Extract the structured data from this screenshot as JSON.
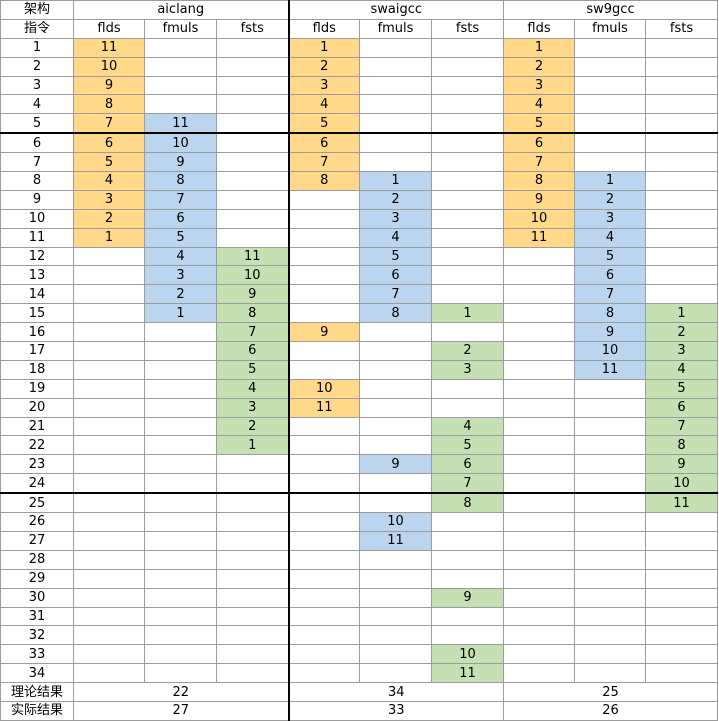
{
  "header": {
    "corner_top": "架构",
    "corner_bottom": "指令",
    "architectures": [
      "aiclang",
      "swaigcc",
      "sw9gcc"
    ],
    "columns": [
      "flds",
      "fmuls",
      "fsts"
    ]
  },
  "colors": {
    "flds": "#ffd88a",
    "fmuls": "#bcd5ee",
    "fsts": "#c5e0b3"
  },
  "rows": [
    {
      "label": "1",
      "cells": [
        "11",
        "",
        "",
        "1",
        "",
        "",
        "1",
        "",
        ""
      ]
    },
    {
      "label": "2",
      "cells": [
        "10",
        "",
        "",
        "2",
        "",
        "",
        "2",
        "",
        ""
      ]
    },
    {
      "label": "3",
      "cells": [
        "9",
        "",
        "",
        "3",
        "",
        "",
        "3",
        "",
        ""
      ]
    },
    {
      "label": "4",
      "cells": [
        "8",
        "",
        "",
        "4",
        "",
        "",
        "4",
        "",
        ""
      ]
    },
    {
      "label": "5",
      "cells": [
        "7",
        "11",
        "",
        "5",
        "",
        "",
        "5",
        "",
        ""
      ]
    },
    {
      "label": "6",
      "cells": [
        "6",
        "10",
        "",
        "6",
        "",
        "",
        "6",
        "",
        ""
      ]
    },
    {
      "label": "7",
      "cells": [
        "5",
        "9",
        "",
        "7",
        "",
        "",
        "7",
        "",
        ""
      ]
    },
    {
      "label": "8",
      "cells": [
        "4",
        "8",
        "",
        "8",
        "1",
        "",
        "8",
        "1",
        ""
      ]
    },
    {
      "label": "9",
      "cells": [
        "3",
        "7",
        "",
        "",
        "2",
        "",
        "9",
        "2",
        ""
      ]
    },
    {
      "label": "10",
      "cells": [
        "2",
        "6",
        "",
        "",
        "3",
        "",
        "10",
        "3",
        ""
      ]
    },
    {
      "label": "11",
      "cells": [
        "1",
        "5",
        "",
        "",
        "4",
        "",
        "11",
        "4",
        ""
      ]
    },
    {
      "label": "12",
      "cells": [
        "",
        "4",
        "11",
        "",
        "5",
        "",
        "",
        "5",
        ""
      ]
    },
    {
      "label": "13",
      "cells": [
        "",
        "3",
        "10",
        "",
        "6",
        "",
        "",
        "6",
        ""
      ]
    },
    {
      "label": "14",
      "cells": [
        "",
        "2",
        "9",
        "",
        "7",
        "",
        "",
        "7",
        ""
      ]
    },
    {
      "label": "15",
      "cells": [
        "",
        "1",
        "8",
        "",
        "8",
        "1",
        "",
        "8",
        "1"
      ]
    },
    {
      "label": "16",
      "cells": [
        "",
        "",
        "7",
        "9",
        "",
        "",
        "",
        "9",
        "2"
      ]
    },
    {
      "label": "17",
      "cells": [
        "",
        "",
        "6",
        "",
        "",
        "2",
        "",
        "10",
        "3"
      ]
    },
    {
      "label": "18",
      "cells": [
        "",
        "",
        "5",
        "",
        "",
        "3",
        "",
        "11",
        "4"
      ]
    },
    {
      "label": "19",
      "cells": [
        "",
        "",
        "4",
        "10",
        "",
        "",
        "",
        "",
        "5"
      ]
    },
    {
      "label": "20",
      "cells": [
        "",
        "",
        "3",
        "11",
        "",
        "",
        "",
        "",
        "6"
      ]
    },
    {
      "label": "21",
      "cells": [
        "",
        "",
        "2",
        "",
        "",
        "4",
        "",
        "",
        "7"
      ]
    },
    {
      "label": "22",
      "cells": [
        "",
        "",
        "1",
        "",
        "",
        "5",
        "",
        "",
        "8"
      ]
    },
    {
      "label": "23",
      "cells": [
        "",
        "",
        "",
        "",
        "9",
        "6",
        "",
        "",
        "9"
      ]
    },
    {
      "label": "24",
      "cells": [
        "",
        "",
        "",
        "",
        "",
        "7",
        "",
        "",
        "10"
      ]
    },
    {
      "label": "25",
      "cells": [
        "",
        "",
        "",
        "",
        "",
        "8",
        "",
        "",
        "11"
      ]
    },
    {
      "label": "26",
      "cells": [
        "",
        "",
        "",
        "",
        "10",
        "",
        "",
        "",
        ""
      ]
    },
    {
      "label": "27",
      "cells": [
        "",
        "",
        "",
        "",
        "11",
        "",
        "",
        "",
        ""
      ]
    },
    {
      "label": "28",
      "cells": [
        "",
        "",
        "",
        "",
        "",
        "",
        "",
        "",
        ""
      ]
    },
    {
      "label": "29",
      "cells": [
        "",
        "",
        "",
        "",
        "",
        "",
        "",
        "",
        ""
      ]
    },
    {
      "label": "30",
      "cells": [
        "",
        "",
        "",
        "",
        "",
        "9",
        "",
        "",
        ""
      ]
    },
    {
      "label": "31",
      "cells": [
        "",
        "",
        "",
        "",
        "",
        "",
        "",
        "",
        ""
      ]
    },
    {
      "label": "32",
      "cells": [
        "",
        "",
        "",
        "",
        "",
        "",
        "",
        "",
        ""
      ]
    },
    {
      "label": "33",
      "cells": [
        "",
        "",
        "",
        "",
        "",
        "10",
        "",
        "",
        ""
      ]
    },
    {
      "label": "34",
      "cells": [
        "",
        "",
        "",
        "",
        "",
        "11",
        "",
        "",
        ""
      ]
    }
  ],
  "footer": {
    "theory": {
      "label": "理论结果",
      "values": [
        "22",
        "34",
        "25"
      ]
    },
    "actual": {
      "label": "实际结果",
      "values": [
        "27",
        "33",
        "26"
      ]
    }
  }
}
